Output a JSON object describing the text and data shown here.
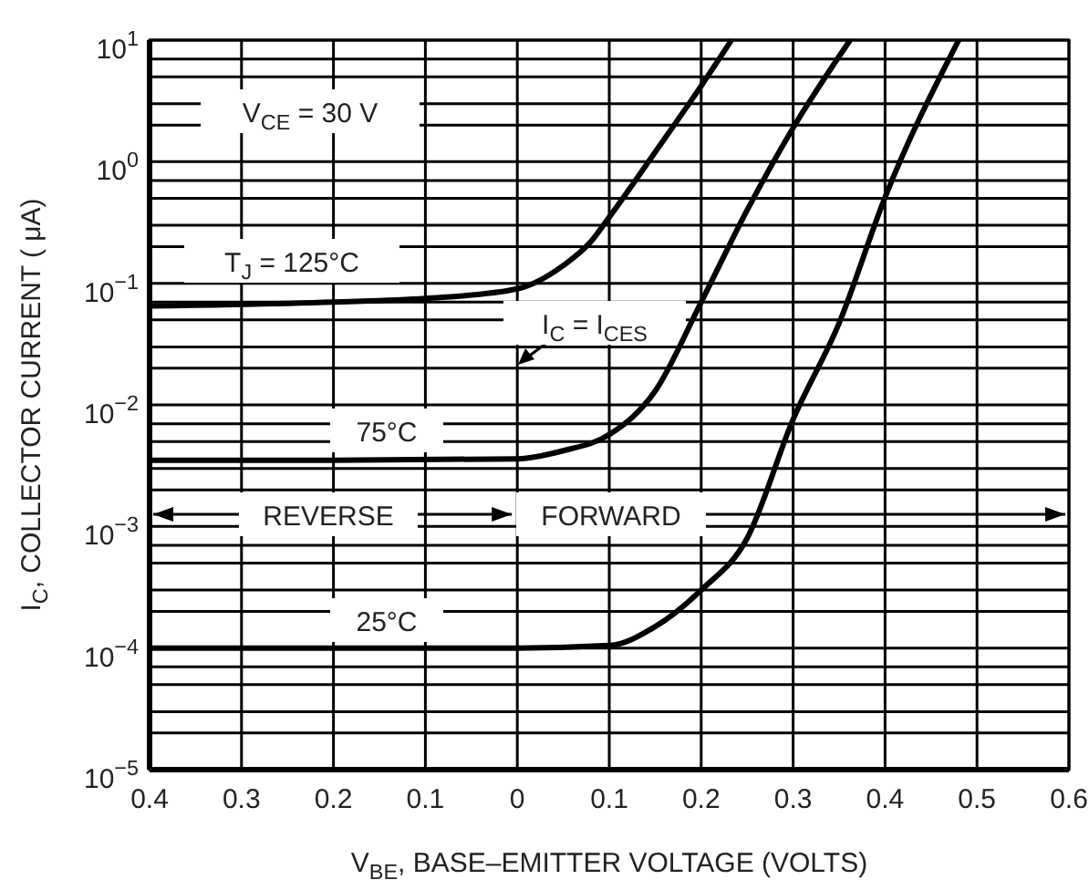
{
  "chart_data": {
    "type": "line",
    "xlabel": "V$_{BE}$, BASE–EMITTER VOLTAGE (VOLTS)",
    "ylabel": "I$_{C}$, COLLECTOR CURRENT ( μA)",
    "log": "y",
    "grid": true,
    "line_style": "solid",
    "marker": "none",
    "xlim": [
      -0.4,
      0.6
    ],
    "xticks": [
      {
        "value": -0.4,
        "label": "0.4"
      },
      {
        "value": -0.3,
        "label": "0.3"
      },
      {
        "value": -0.2,
        "label": "0.2"
      },
      {
        "value": -0.1,
        "label": "0.1"
      },
      0,
      0.1,
      0.2,
      0.3,
      0.4,
      0.5,
      0.6
    ],
    "ylim": [
      1e-05,
      10
    ],
    "yticks": [
      {
        "value": 1e-05,
        "label": "10$^{−5}$"
      },
      {
        "value": 0.0001,
        "label": "10$^{−4}$"
      },
      {
        "value": 0.001,
        "label": "10$^{−3}$"
      },
      {
        "value": 0.01,
        "label": "10$^{−2}$"
      },
      {
        "value": 0.1,
        "label": "10$^{−1}$"
      },
      {
        "value": 1,
        "label": "10$^{0}$"
      },
      {
        "value": 10,
        "label": "10$^{1}$"
      }
    ],
    "series": [
      {
        "name": "T$_{J}$ = 125°C",
        "color": "#000000",
        "x": [
          -0.4,
          -0.2,
          -0.1,
          0,
          0.05,
          0.08,
          0.1,
          0.15,
          0.2,
          0.233
        ],
        "values": [
          0.065,
          0.07,
          0.075,
          0.09,
          0.14,
          0.22,
          0.35,
          1.2,
          4.2,
          10
        ]
      },
      {
        "name": "75°C",
        "color": "#000000",
        "x": [
          -0.4,
          -0.2,
          0,
          0.05,
          0.1,
          0.15,
          0.2,
          0.25,
          0.3,
          0.362
        ],
        "values": [
          0.0035,
          0.0035,
          0.0036,
          0.0042,
          0.0057,
          0.013,
          0.07,
          0.4,
          1.9,
          10
        ]
      },
      {
        "name": "25°C",
        "color": "#000000",
        "x": [
          -0.4,
          -0.1,
          0,
          0.1,
          0.15,
          0.2,
          0.25,
          0.3,
          0.35,
          0.4,
          0.48
        ],
        "values": [
          0.0001,
          0.0001,
          0.0001,
          0.000105,
          0.00015,
          0.0003,
          0.0008,
          0.0076,
          0.047,
          0.51,
          10
        ]
      }
    ],
    "annotations": [
      "V$_{CE}$ = 30 V",
      "I$_{C}$ = I$_{CES}$",
      "REVERSE",
      "FORWARD"
    ]
  }
}
